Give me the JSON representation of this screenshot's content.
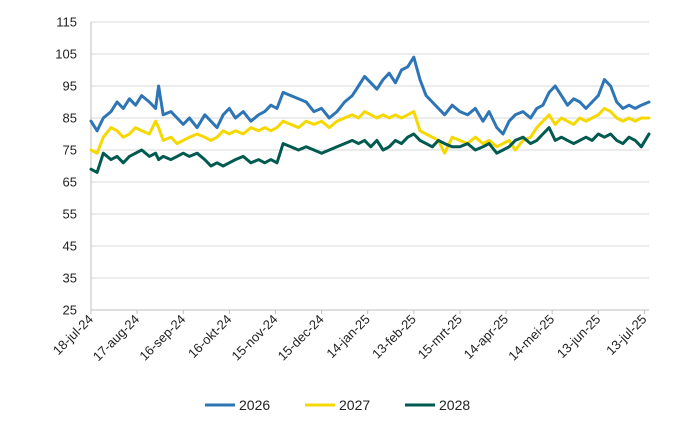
{
  "chart_data": {
    "type": "line",
    "title": "",
    "xlabel": "",
    "ylabel": "",
    "ylim": [
      25,
      115
    ],
    "yticks": [
      25,
      35,
      45,
      55,
      65,
      75,
      85,
      95,
      105,
      115
    ],
    "grid": "horizontal",
    "legend_position": "bottom",
    "x_tick_labels": [
      "18-jul-24",
      "17-aug-24",
      "16-sep-24",
      "16-okt-24",
      "15-nov-24",
      "15-dec-24",
      "14-jan-25",
      "13-feb-25",
      "15-mrt-25",
      "14-apr-25",
      "14-mei-25",
      "13-jun-25",
      "13-jul-25"
    ],
    "x_tick_dates": [
      "2024-07-18",
      "2024-08-17",
      "2024-09-16",
      "2024-10-16",
      "2024-11-15",
      "2024-12-15",
      "2025-01-14",
      "2025-02-13",
      "2025-03-15",
      "2025-04-14",
      "2025-05-14",
      "2025-06-13",
      "2025-07-13"
    ],
    "x_range": [
      "2024-07-18",
      "2025-07-16"
    ],
    "series": [
      {
        "name": "2026",
        "color": "#2e75b6",
        "points": [
          [
            "2024-07-18",
            84
          ],
          [
            "2024-07-22",
            81
          ],
          [
            "2024-07-26",
            85
          ],
          [
            "2024-07-31",
            87
          ],
          [
            "2024-08-04",
            90
          ],
          [
            "2024-08-08",
            88
          ],
          [
            "2024-08-12",
            91
          ],
          [
            "2024-08-16",
            89
          ],
          [
            "2024-08-20",
            92
          ],
          [
            "2024-08-25",
            90
          ],
          [
            "2024-08-29",
            88
          ],
          [
            "2024-08-31",
            95
          ],
          [
            "2024-09-03",
            86
          ],
          [
            "2024-09-08",
            87
          ],
          [
            "2024-09-12",
            85
          ],
          [
            "2024-09-16",
            83
          ],
          [
            "2024-09-20",
            85
          ],
          [
            "2024-09-25",
            82
          ],
          [
            "2024-09-30",
            86
          ],
          [
            "2024-10-04",
            84
          ],
          [
            "2024-10-08",
            82
          ],
          [
            "2024-10-12",
            86
          ],
          [
            "2024-10-16",
            88
          ],
          [
            "2024-10-20",
            85
          ],
          [
            "2024-10-25",
            87
          ],
          [
            "2024-10-30",
            84
          ],
          [
            "2024-11-04",
            86
          ],
          [
            "2024-11-08",
            87
          ],
          [
            "2024-11-12",
            89
          ],
          [
            "2024-11-16",
            88
          ],
          [
            "2024-11-20",
            93
          ],
          [
            "2024-11-25",
            92
          ],
          [
            "2024-11-30",
            91
          ],
          [
            "2024-12-05",
            90
          ],
          [
            "2024-12-10",
            87
          ],
          [
            "2024-12-15",
            88
          ],
          [
            "2024-12-20",
            85
          ],
          [
            "2024-12-25",
            87
          ],
          [
            "2024-12-30",
            90
          ],
          [
            "2025-01-04",
            92
          ],
          [
            "2025-01-08",
            95
          ],
          [
            "2025-01-12",
            98
          ],
          [
            "2025-01-16",
            96
          ],
          [
            "2025-01-20",
            94
          ],
          [
            "2025-01-24",
            97
          ],
          [
            "2025-01-28",
            99
          ],
          [
            "2025-02-01",
            96
          ],
          [
            "2025-02-05",
            100
          ],
          [
            "2025-02-09",
            101
          ],
          [
            "2025-02-13",
            104
          ],
          [
            "2025-02-17",
            97
          ],
          [
            "2025-02-21",
            92
          ],
          [
            "2025-02-25",
            90
          ],
          [
            "2025-03-01",
            88
          ],
          [
            "2025-03-05",
            86
          ],
          [
            "2025-03-10",
            89
          ],
          [
            "2025-03-15",
            87
          ],
          [
            "2025-03-20",
            86
          ],
          [
            "2025-03-25",
            88
          ],
          [
            "2025-03-30",
            84
          ],
          [
            "2025-04-03",
            87
          ],
          [
            "2025-04-08",
            82
          ],
          [
            "2025-04-12",
            80
          ],
          [
            "2025-04-16",
            84
          ],
          [
            "2025-04-20",
            86
          ],
          [
            "2025-04-25",
            87
          ],
          [
            "2025-04-30",
            85
          ],
          [
            "2025-05-04",
            88
          ],
          [
            "2025-05-08",
            89
          ],
          [
            "2025-05-12",
            93
          ],
          [
            "2025-05-16",
            95
          ],
          [
            "2025-05-20",
            92
          ],
          [
            "2025-05-24",
            89
          ],
          [
            "2025-05-28",
            91
          ],
          [
            "2025-06-01",
            90
          ],
          [
            "2025-06-05",
            88
          ],
          [
            "2025-06-09",
            90
          ],
          [
            "2025-06-13",
            92
          ],
          [
            "2025-06-17",
            97
          ],
          [
            "2025-06-21",
            95
          ],
          [
            "2025-06-25",
            90
          ],
          [
            "2025-06-29",
            88
          ],
          [
            "2025-07-03",
            89
          ],
          [
            "2025-07-07",
            88
          ],
          [
            "2025-07-11",
            89
          ],
          [
            "2025-07-16",
            90
          ]
        ]
      },
      {
        "name": "2027",
        "color": "#f5d800",
        "points": [
          [
            "2024-07-18",
            75
          ],
          [
            "2024-07-22",
            74
          ],
          [
            "2024-07-26",
            79
          ],
          [
            "2024-07-31",
            82
          ],
          [
            "2024-08-04",
            81
          ],
          [
            "2024-08-08",
            79
          ],
          [
            "2024-08-12",
            80
          ],
          [
            "2024-08-16",
            82
          ],
          [
            "2024-08-20",
            81
          ],
          [
            "2024-08-25",
            80
          ],
          [
            "2024-08-29",
            84
          ],
          [
            "2024-08-31",
            82
          ],
          [
            "2024-09-03",
            78
          ],
          [
            "2024-09-08",
            79
          ],
          [
            "2024-09-12",
            77
          ],
          [
            "2024-09-16",
            78
          ],
          [
            "2024-09-20",
            79
          ],
          [
            "2024-09-25",
            80
          ],
          [
            "2024-09-30",
            79
          ],
          [
            "2024-10-04",
            78
          ],
          [
            "2024-10-08",
            79
          ],
          [
            "2024-10-12",
            81
          ],
          [
            "2024-10-16",
            80
          ],
          [
            "2024-10-20",
            81
          ],
          [
            "2024-10-25",
            80
          ],
          [
            "2024-10-30",
            82
          ],
          [
            "2024-11-04",
            81
          ],
          [
            "2024-11-08",
            82
          ],
          [
            "2024-11-12",
            81
          ],
          [
            "2024-11-16",
            82
          ],
          [
            "2024-11-20",
            84
          ],
          [
            "2024-11-25",
            83
          ],
          [
            "2024-11-30",
            82
          ],
          [
            "2024-12-05",
            84
          ],
          [
            "2024-12-10",
            83
          ],
          [
            "2024-12-15",
            84
          ],
          [
            "2024-12-20",
            82
          ],
          [
            "2024-12-25",
            84
          ],
          [
            "2024-12-30",
            85
          ],
          [
            "2025-01-04",
            86
          ],
          [
            "2025-01-08",
            85
          ],
          [
            "2025-01-12",
            87
          ],
          [
            "2025-01-16",
            86
          ],
          [
            "2025-01-20",
            85
          ],
          [
            "2025-01-24",
            86
          ],
          [
            "2025-01-28",
            85
          ],
          [
            "2025-02-01",
            86
          ],
          [
            "2025-02-05",
            85
          ],
          [
            "2025-02-09",
            86
          ],
          [
            "2025-02-13",
            87
          ],
          [
            "2025-02-17",
            81
          ],
          [
            "2025-02-21",
            80
          ],
          [
            "2025-02-25",
            79
          ],
          [
            "2025-03-01",
            78
          ],
          [
            "2025-03-05",
            74
          ],
          [
            "2025-03-10",
            79
          ],
          [
            "2025-03-15",
            78
          ],
          [
            "2025-03-20",
            77
          ],
          [
            "2025-03-25",
            79
          ],
          [
            "2025-03-30",
            77
          ],
          [
            "2025-04-03",
            78
          ],
          [
            "2025-04-08",
            76
          ],
          [
            "2025-04-12",
            77
          ],
          [
            "2025-04-16",
            78
          ],
          [
            "2025-04-20",
            75
          ],
          [
            "2025-04-25",
            78
          ],
          [
            "2025-04-30",
            79
          ],
          [
            "2025-05-04",
            82
          ],
          [
            "2025-05-08",
            84
          ],
          [
            "2025-05-12",
            86
          ],
          [
            "2025-05-16",
            83
          ],
          [
            "2025-05-20",
            85
          ],
          [
            "2025-05-24",
            84
          ],
          [
            "2025-05-28",
            83
          ],
          [
            "2025-06-01",
            85
          ],
          [
            "2025-06-05",
            84
          ],
          [
            "2025-06-09",
            85
          ],
          [
            "2025-06-13",
            86
          ],
          [
            "2025-06-17",
            88
          ],
          [
            "2025-06-21",
            87
          ],
          [
            "2025-06-25",
            85
          ],
          [
            "2025-06-29",
            84
          ],
          [
            "2025-07-03",
            85
          ],
          [
            "2025-07-07",
            84
          ],
          [
            "2025-07-11",
            85
          ],
          [
            "2025-07-16",
            85
          ]
        ]
      },
      {
        "name": "2028",
        "color": "#005a50",
        "points": [
          [
            "2024-07-18",
            69
          ],
          [
            "2024-07-22",
            68
          ],
          [
            "2024-07-26",
            74
          ],
          [
            "2024-07-31",
            72
          ],
          [
            "2024-08-04",
            73
          ],
          [
            "2024-08-08",
            71
          ],
          [
            "2024-08-12",
            73
          ],
          [
            "2024-08-16",
            74
          ],
          [
            "2024-08-20",
            75
          ],
          [
            "2024-08-25",
            73
          ],
          [
            "2024-08-29",
            74
          ],
          [
            "2024-08-31",
            72
          ],
          [
            "2024-09-03",
            73
          ],
          [
            "2024-09-08",
            72
          ],
          [
            "2024-09-12",
            73
          ],
          [
            "2024-09-16",
            74
          ],
          [
            "2024-09-20",
            73
          ],
          [
            "2024-09-25",
            74
          ],
          [
            "2024-09-30",
            72
          ],
          [
            "2024-10-04",
            70
          ],
          [
            "2024-10-08",
            71
          ],
          [
            "2024-10-12",
            70
          ],
          [
            "2024-10-16",
            71
          ],
          [
            "2024-10-20",
            72
          ],
          [
            "2024-10-25",
            73
          ],
          [
            "2024-10-30",
            71
          ],
          [
            "2024-11-04",
            72
          ],
          [
            "2024-11-08",
            71
          ],
          [
            "2024-11-12",
            72
          ],
          [
            "2024-11-16",
            71
          ],
          [
            "2024-11-20",
            77
          ],
          [
            "2024-11-25",
            76
          ],
          [
            "2024-11-30",
            75
          ],
          [
            "2024-12-05",
            76
          ],
          [
            "2024-12-10",
            75
          ],
          [
            "2024-12-15",
            74
          ],
          [
            "2024-12-20",
            75
          ],
          [
            "2024-12-25",
            76
          ],
          [
            "2024-12-30",
            77
          ],
          [
            "2025-01-04",
            78
          ],
          [
            "2025-01-08",
            77
          ],
          [
            "2025-01-12",
            78
          ],
          [
            "2025-01-16",
            76
          ],
          [
            "2025-01-20",
            78
          ],
          [
            "2025-01-24",
            75
          ],
          [
            "2025-01-28",
            76
          ],
          [
            "2025-02-01",
            78
          ],
          [
            "2025-02-05",
            77
          ],
          [
            "2025-02-09",
            79
          ],
          [
            "2025-02-13",
            80
          ],
          [
            "2025-02-17",
            78
          ],
          [
            "2025-02-21",
            77
          ],
          [
            "2025-02-25",
            76
          ],
          [
            "2025-03-01",
            78
          ],
          [
            "2025-03-05",
            77
          ],
          [
            "2025-03-10",
            76
          ],
          [
            "2025-03-15",
            76
          ],
          [
            "2025-03-20",
            77
          ],
          [
            "2025-03-25",
            75
          ],
          [
            "2025-03-30",
            76
          ],
          [
            "2025-04-03",
            77
          ],
          [
            "2025-04-08",
            74
          ],
          [
            "2025-04-12",
            75
          ],
          [
            "2025-04-16",
            76
          ],
          [
            "2025-04-20",
            78
          ],
          [
            "2025-04-25",
            79
          ],
          [
            "2025-04-30",
            77
          ],
          [
            "2025-05-04",
            78
          ],
          [
            "2025-05-08",
            80
          ],
          [
            "2025-05-12",
            82
          ],
          [
            "2025-05-16",
            78
          ],
          [
            "2025-05-20",
            79
          ],
          [
            "2025-05-24",
            78
          ],
          [
            "2025-05-28",
            77
          ],
          [
            "2025-06-01",
            78
          ],
          [
            "2025-06-05",
            79
          ],
          [
            "2025-06-09",
            78
          ],
          [
            "2025-06-13",
            80
          ],
          [
            "2025-06-17",
            79
          ],
          [
            "2025-06-21",
            80
          ],
          [
            "2025-06-25",
            78
          ],
          [
            "2025-06-29",
            77
          ],
          [
            "2025-07-03",
            79
          ],
          [
            "2025-07-07",
            78
          ],
          [
            "2025-07-11",
            76
          ],
          [
            "2025-07-16",
            80
          ]
        ]
      }
    ]
  }
}
